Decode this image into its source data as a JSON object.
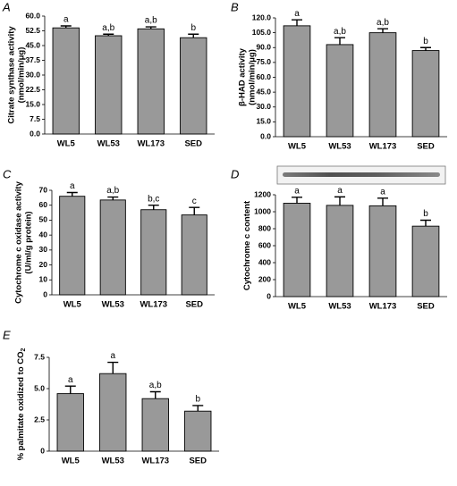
{
  "chart_data": [
    {
      "type": "bar",
      "panel": "A",
      "ylabel": [
        "Citrate synthase activity",
        "(nmol/min/μg)"
      ],
      "categories": [
        "WL5",
        "WL53",
        "WL173",
        "SED"
      ],
      "values": [
        54,
        50,
        53.5,
        49
      ],
      "errors": [
        1,
        0.8,
        1,
        1.8
      ],
      "letters": [
        "a",
        "a,b",
        "a,b",
        "b"
      ],
      "color": "#999999",
      "ylim": [
        0,
        60
      ],
      "yticks": [
        {
          "value": 0,
          "label": "0.0"
        },
        7.5,
        {
          "value": 15,
          "label": "15.0"
        },
        22.5,
        {
          "value": 30,
          "label": "30.0"
        },
        37.5,
        {
          "value": 45,
          "label": "45.0"
        },
        52.5,
        {
          "value": 60,
          "label": "60.0"
        }
      ]
    },
    {
      "type": "bar",
      "panel": "B",
      "ylabel": [
        "β-HAD activity",
        "(nmol/min/μg)"
      ],
      "categories": [
        "WL5",
        "WL53",
        "WL173",
        "SED"
      ],
      "values": [
        112,
        93,
        105,
        87
      ],
      "errors": [
        6,
        7,
        4,
        3
      ],
      "letters": [
        "a",
        "a,b",
        "a,b",
        "b"
      ],
      "color": "#999999",
      "ylim": [
        0,
        120
      ],
      "yticks": [
        {
          "value": 0,
          "label": "0.0"
        },
        {
          "value": 15,
          "label": "15.0"
        },
        {
          "value": 30,
          "label": "30.0"
        },
        {
          "value": 45,
          "label": "45.0"
        },
        {
          "value": 60,
          "label": "60.0"
        },
        {
          "value": 75,
          "label": "75.0"
        },
        {
          "value": 90,
          "label": "90.0"
        },
        {
          "value": 105,
          "label": "105.0"
        },
        {
          "value": 120,
          "label": "120.0"
        }
      ]
    },
    {
      "type": "bar",
      "panel": "C",
      "ylabel": [
        "Cytochrome c oxidase activity",
        "(U/ml/g protein)"
      ],
      "categories": [
        "WL5",
        "WL53",
        "WL173",
        "SED"
      ],
      "values": [
        66,
        63.5,
        57,
        53.5
      ],
      "errors": [
        2.5,
        2,
        3,
        5
      ],
      "letters": [
        "a",
        "a,b",
        "b,c",
        "c"
      ],
      "color": "#999999",
      "ylim": [
        0,
        70
      ],
      "yticks": [
        0,
        10,
        20,
        30,
        40,
        50,
        60,
        70
      ]
    },
    {
      "type": "bar",
      "panel": "D",
      "ylabel": [
        "Cytochrome c content"
      ],
      "categories": [
        "WL5",
        "WL53",
        "WL173",
        "SED"
      ],
      "values": [
        1100,
        1075,
        1070,
        830
      ],
      "errors": [
        70,
        100,
        90,
        70
      ],
      "letters": [
        "a",
        "a",
        "a",
        "b"
      ],
      "color": "#999999",
      "ylim": [
        0,
        1200
      ],
      "yticks": [
        0,
        200,
        400,
        600,
        800,
        1000,
        1200
      ]
    },
    {
      "type": "bar",
      "panel": "E",
      "ylabel": [
        "% palmitate oxidized to CO"
      ],
      "ylabel_subscript": "2",
      "categories": [
        "WL5",
        "WL53",
        "WL173",
        "SED"
      ],
      "values": [
        4.6,
        6.2,
        4.2,
        3.2
      ],
      "errors": [
        0.6,
        0.9,
        0.55,
        0.45
      ],
      "letters": [
        "a",
        "a",
        "a,b",
        "b"
      ],
      "color": "#999999",
      "ylim": [
        0,
        7.5
      ],
      "yticks": [
        0,
        2.5,
        {
          "value": 5,
          "label": "5.0"
        },
        7.5
      ]
    }
  ]
}
